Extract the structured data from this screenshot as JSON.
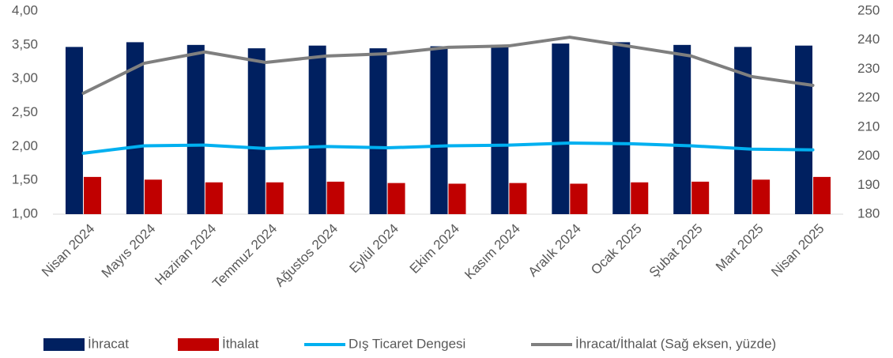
{
  "chart_data": {
    "type": "bar",
    "categories": [
      "Nisan 2024",
      "Mayıs 2024",
      "Haziran 2024",
      "Temmuz 2024",
      "Ağustos 2024",
      "Eylül 2024",
      "Ekim 2024",
      "Kasım 2024",
      "Aralık 2024",
      "Ocak 2025",
      "Şubat 2025",
      "Mart 2025",
      "Nisan 2025"
    ],
    "series": [
      {
        "name": "İhracat",
        "type": "bar",
        "color": "#002060",
        "values": [
          3.47,
          3.54,
          3.5,
          3.45,
          3.49,
          3.45,
          3.48,
          3.5,
          3.52,
          3.54,
          3.5,
          3.47,
          3.49
        ]
      },
      {
        "name": "İthalat",
        "type": "bar",
        "color": "#c00000",
        "values": [
          1.55,
          1.51,
          1.47,
          1.47,
          1.48,
          1.46,
          1.45,
          1.46,
          1.45,
          1.47,
          1.48,
          1.51,
          1.55
        ]
      },
      {
        "name": "Dış Ticaret Dengesi",
        "type": "line",
        "color": "#00b0f0",
        "values": [
          1.9,
          2.01,
          2.02,
          1.97,
          2.0,
          1.98,
          2.01,
          2.02,
          2.05,
          2.04,
          2.01,
          1.96,
          1.95
        ]
      },
      {
        "name": "İhracat/İthalat (Sağ eksen, yüzde)",
        "type": "line",
        "axis": "y2",
        "color": "#7f7f7f",
        "values": [
          221.7,
          232.0,
          235.9,
          232.3,
          234.5,
          235.3,
          237.5,
          238.0,
          241.0,
          237.8,
          234.5,
          227.4,
          224.4
        ]
      }
    ],
    "ylim": [
      1,
      4
    ],
    "yticks": [
      {
        "value": 1,
        "label": "1,00"
      },
      {
        "value": 1.5,
        "label": "1,50"
      },
      {
        "value": 2,
        "label": "2,00"
      },
      {
        "value": 2.5,
        "label": "2,50"
      },
      {
        "value": 3,
        "label": "3,00"
      },
      {
        "value": 3.5,
        "label": "3,50"
      },
      {
        "value": 4,
        "label": "4,00"
      }
    ],
    "y2lim": [
      180,
      250
    ],
    "y2ticks": [
      180,
      190,
      200,
      210,
      220,
      230,
      240,
      250
    ],
    "grid": false,
    "legend": "bottom"
  }
}
